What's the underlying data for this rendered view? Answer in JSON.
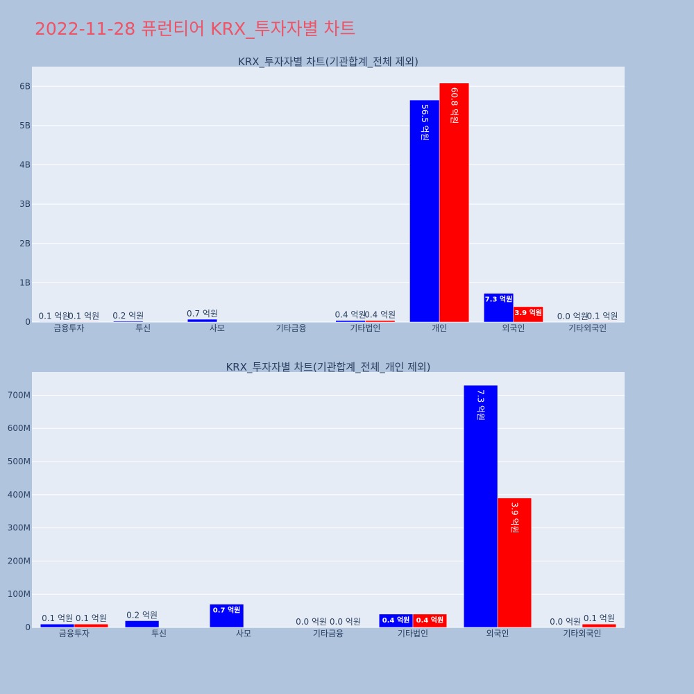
{
  "page": {
    "title": "2022-11-28 퓨런티어 KRX_투자자별 차트"
  },
  "colors": {
    "series_a": "#0000ff",
    "series_b": "#ff0000",
    "plot_bg": "#e5ecf6",
    "paper_bg": "#b0c4de",
    "title": "#ef5366"
  },
  "chart_data": [
    {
      "type": "bar",
      "title": "KRX_투자자별 차트(기관합계_전체 제외)",
      "categories": [
        "금융투자",
        "투신",
        "사모",
        "기타금융",
        "기타법인",
        "개인",
        "외국인",
        "기타외국인"
      ],
      "yticks": [
        0,
        1000000000,
        2000000000,
        3000000000,
        4000000000,
        5000000000,
        6000000000
      ],
      "ytick_labels": [
        "0",
        "1B",
        "2B",
        "3B",
        "4B",
        "5B",
        "6B"
      ],
      "ylim": [
        0,
        6500000000
      ],
      "series": [
        {
          "color": "#0000ff",
          "values": [
            10000000,
            20000000,
            70000000,
            0,
            40000000,
            5650000000,
            730000000,
            0
          ],
          "labels": [
            "0.1 억원",
            "0.2 억원",
            "0.7 억원",
            "",
            "0.4 억원",
            "56.5 억원",
            "7.3 억원",
            "0.0 억원"
          ]
        },
        {
          "color": "#ff0000",
          "values": [
            10000000,
            0,
            0,
            0,
            40000000,
            6080000000,
            390000000,
            10000000
          ],
          "labels": [
            "0.1 억원",
            "",
            "",
            "",
            "0.4 억원",
            "60.8 억원",
            "3.9 억원",
            "0.1 억원"
          ]
        }
      ]
    },
    {
      "type": "bar",
      "title": "KRX_투자자별 차트(기관합계_전체_개인 제외)",
      "categories": [
        "금융투자",
        "투신",
        "사모",
        "기타금융",
        "기타법인",
        "외국인",
        "기타외국인"
      ],
      "yticks": [
        0,
        100000000,
        200000000,
        300000000,
        400000000,
        500000000,
        600000000,
        700000000
      ],
      "ytick_labels": [
        "0",
        "100M",
        "200M",
        "300M",
        "400M",
        "500M",
        "600M",
        "700M"
      ],
      "ylim": [
        0,
        770000000
      ],
      "series": [
        {
          "color": "#0000ff",
          "values": [
            10000000,
            20000000,
            70000000,
            0,
            40000000,
            730000000,
            0
          ],
          "labels": [
            "0.1 억원",
            "0.2 억원",
            "0.7 억원",
            "0.0 억원",
            "0.4 억원",
            "7.3 억원",
            "0.0 억원"
          ]
        },
        {
          "color": "#ff0000",
          "values": [
            10000000,
            0,
            0,
            0,
            40000000,
            390000000,
            10000000
          ],
          "labels": [
            "0.1 억원",
            "",
            "",
            "0.0 억원",
            "0.4 억원",
            "3.9 억원",
            "0.1 억원"
          ]
        }
      ]
    }
  ]
}
